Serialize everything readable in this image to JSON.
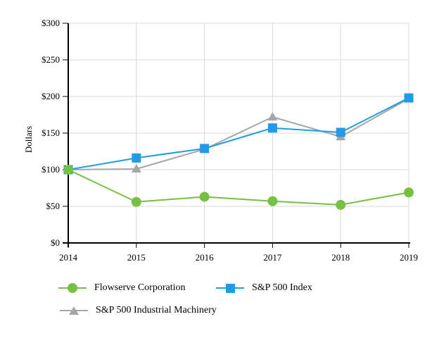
{
  "window": {
    "background": "#ffffff"
  },
  "chart_data": {
    "type": "line",
    "ylabel": "Dollars",
    "x": [
      "2014",
      "2015",
      "2016",
      "2017",
      "2018",
      "2019"
    ],
    "ylim": [
      0,
      300
    ],
    "y_tick_step": 50,
    "y_tick_labels": [
      "$0",
      "$50",
      "$100",
      "$150",
      "$200",
      "$250",
      "$300"
    ],
    "grid": true,
    "legend_position": "bottom",
    "axis_color": "#000000",
    "gridline_color": "#d9d9d9",
    "series": [
      {
        "name": "Flowserve Corporation",
        "marker": "circle",
        "color": "#76c043",
        "values": [
          100,
          56,
          63,
          57,
          52,
          69
        ]
      },
      {
        "name": "S&P 500 Index",
        "marker": "square",
        "color": "#1e9be9",
        "values": [
          100,
          116,
          129,
          157,
          151,
          198
        ]
      },
      {
        "name": "S&P 500 Industrial Machinery",
        "marker": "triangle",
        "color": "#a6a6a6",
        "values": [
          100,
          101,
          128,
          172,
          145,
          197
        ]
      }
    ]
  }
}
